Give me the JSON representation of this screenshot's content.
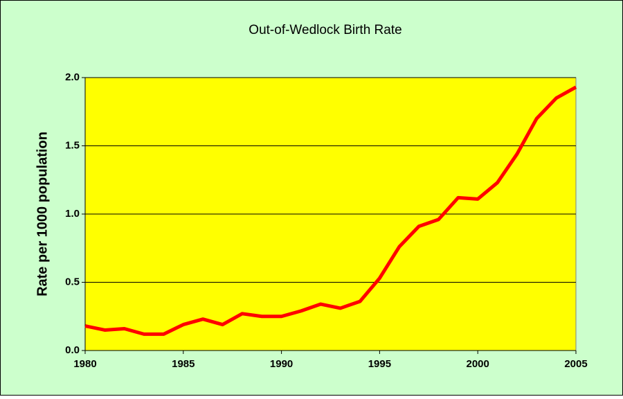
{
  "chart_data": {
    "type": "line",
    "title": "Out-of-Wedlock Birth Rate",
    "ylabel": "Rate per 1000 population",
    "x": [
      1980,
      1981,
      1982,
      1983,
      1984,
      1985,
      1986,
      1987,
      1988,
      1989,
      1990,
      1991,
      1992,
      1993,
      1994,
      1995,
      1996,
      1997,
      1998,
      1999,
      2000,
      2001,
      2002,
      2003,
      2004,
      2005
    ],
    "series": [
      {
        "name": "Out-of-Wedlock Birth Rate",
        "color": "#ff0000",
        "values": [
          0.18,
          0.15,
          0.16,
          0.12,
          0.12,
          0.19,
          0.23,
          0.19,
          0.27,
          0.25,
          0.25,
          0.29,
          0.34,
          0.31,
          0.36,
          0.53,
          0.76,
          0.91,
          0.96,
          1.12,
          1.11,
          1.23,
          1.44,
          1.7,
          1.85,
          1.93
        ]
      }
    ],
    "xlim": [
      1980,
      2005
    ],
    "xticks": [
      1980,
      1985,
      1990,
      1995,
      2000,
      2005
    ],
    "ylim": [
      0,
      2
    ],
    "yticks": [
      {
        "value": 0,
        "label": "0.0"
      },
      {
        "value": 0.5,
        "label": "0.5"
      },
      {
        "value": 1,
        "label": "1.0"
      },
      {
        "value": 1.5,
        "label": "1.5"
      },
      {
        "value": 2,
        "label": "2.0"
      }
    ],
    "grid": true
  }
}
